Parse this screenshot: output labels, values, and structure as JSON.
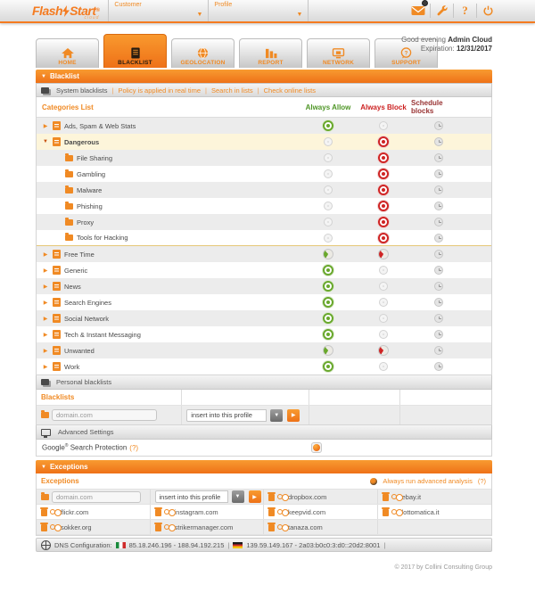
{
  "colors": {
    "orange": "#f47b20",
    "green": "#69a82c",
    "red": "#cf2424",
    "maroon": "#993333",
    "highlight_row": "#fdf5da"
  },
  "header": {
    "logo": {
      "part1": "Flash",
      "part2": "Start",
      "registered": "®",
      "sub": "cloud"
    },
    "customer_label": "Customer",
    "profile_label": "Profile",
    "help_glyph": "?"
  },
  "tabs": [
    {
      "label": "HOME",
      "active": false
    },
    {
      "label": "BLACKLIST",
      "active": true
    },
    {
      "label": "GEOLOCATION",
      "active": false
    },
    {
      "label": "REPORT",
      "active": false
    },
    {
      "label": "NETWORK",
      "active": false
    },
    {
      "label": "SUPPORT",
      "active": false
    }
  ],
  "greeting": {
    "prefix": "Good evening",
    "name": "Admin Cloud",
    "expiration_label": "Expiration:",
    "expiration_date": "12/31/2017"
  },
  "blacklist_section": {
    "bar_title": "Blacklist"
  },
  "system_bar": {
    "title": "System blacklists",
    "links": [
      "Policy is applied in real time",
      "Search in lists",
      "Check online lists"
    ]
  },
  "categories_table": {
    "header": {
      "categories": "Categories List",
      "allow": "Always Allow",
      "block": "Always Block",
      "schedule": "Schedule blocks"
    },
    "rows": [
      {
        "label": "Ads, Spam & Web Stats",
        "level": 0,
        "arrow": "right",
        "state": "allow"
      },
      {
        "label": "Dangerous",
        "level": 0,
        "arrow": "down",
        "state": "block",
        "highlight": true
      },
      {
        "label": "File Sharing",
        "level": 1,
        "state": "block"
      },
      {
        "label": "Gambling",
        "level": 1,
        "state": "block"
      },
      {
        "label": "Malware",
        "level": 1,
        "state": "block"
      },
      {
        "label": "Phishing",
        "level": 1,
        "state": "block"
      },
      {
        "label": "Proxy",
        "level": 1,
        "state": "block"
      },
      {
        "label": "Tools for Hacking",
        "level": 1,
        "state": "block",
        "group_end": true
      },
      {
        "label": "Free Time",
        "level": 0,
        "arrow": "right",
        "state": "partial"
      },
      {
        "label": "Generic",
        "level": 0,
        "arrow": "right",
        "state": "allow"
      },
      {
        "label": "News",
        "level": 0,
        "arrow": "right",
        "state": "allow"
      },
      {
        "label": "Search Engines",
        "level": 0,
        "arrow": "right",
        "state": "allow"
      },
      {
        "label": "Social Network",
        "level": 0,
        "arrow": "right",
        "state": "allow"
      },
      {
        "label": "Tech & Instant Messaging",
        "level": 0,
        "arrow": "right",
        "state": "allow"
      },
      {
        "label": "Unwanted",
        "level": 0,
        "arrow": "right",
        "state": "partial"
      },
      {
        "label": "Work",
        "level": 0,
        "arrow": "right",
        "state": "allow"
      }
    ]
  },
  "personal": {
    "bar_title": "Personal blacklists",
    "column_label": "Blacklists",
    "input_placeholder": "domain.com",
    "select_value": "insert into this profile"
  },
  "advanced": {
    "bar_title": "Advanced Settings",
    "google_brand": "Google",
    "google_reg": "®",
    "google_label": " Search Protection",
    "help": "(?)"
  },
  "exceptions": {
    "bar_title": "Exceptions",
    "column_label": "Exceptions",
    "analysis_label": "Always run advanced analysis",
    "analysis_help": "(?)",
    "input_placeholder": "domain.com",
    "select_value": "insert into this profile",
    "domains": [
      "dropbox.com",
      "ebay.it",
      "flickr.com",
      "instagram.com",
      "keepvid.com",
      "lottomatica.it",
      "sokker.org",
      "strikermanager.com",
      "tanaza.com"
    ]
  },
  "dns": {
    "label": "DNS Configuration:",
    "separator": "|",
    "entries": [
      {
        "flag": "italy",
        "text": "85.18.246.196 - 188.94.192.215"
      },
      {
        "flag": "germany",
        "text": "139.59.149.167 - 2a03:b0c0:3:d0::20d2:8001"
      }
    ]
  },
  "footer": {
    "copyright": "© 2017 by Collini Consulting Group"
  }
}
